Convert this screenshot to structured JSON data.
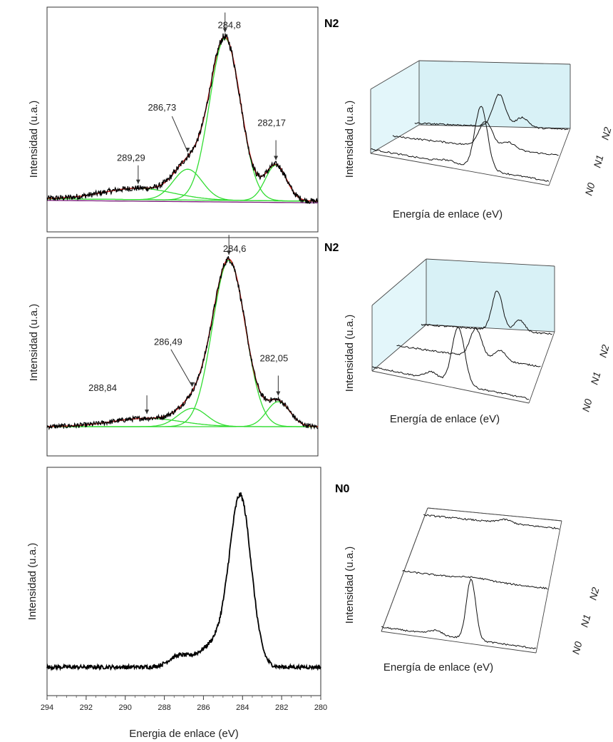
{
  "chart_data": [
    {
      "type": "line",
      "panel_tag": "N2",
      "ylabel": "Intensidad (u.a.)",
      "xlim": [
        294,
        280
      ],
      "components": [
        {
          "center": 284.8,
          "height": 1.0,
          "width": 0.8
        },
        {
          "center": 286.73,
          "height": 0.19,
          "width": 0.75
        },
        {
          "center": 282.17,
          "height": 0.22,
          "width": 0.55
        },
        {
          "center": 289.29,
          "height": 0.07,
          "width": 1.8
        }
      ],
      "annotations": [
        {
          "label": "284,8",
          "x": 284.8
        },
        {
          "label": "286,73",
          "x": 286.73
        },
        {
          "label": "282,17",
          "x": 282.17
        },
        {
          "label": "289,29",
          "x": 289.29
        }
      ],
      "colors": {
        "raw": "#000000",
        "fit": "#cc2222",
        "component": "#33dd33",
        "background": "#7a1a7a"
      },
      "inset": {
        "type": "line",
        "ylabel": "Intensidad (u.a.)",
        "xlabel": "Energía de enlace (eV)",
        "series": [
          "N0",
          "N1",
          "N2"
        ]
      }
    },
    {
      "type": "line",
      "panel_tag": "N2",
      "ylabel": "Intensidad (u.a.)",
      "xlim": [
        294,
        280
      ],
      "components": [
        {
          "center": 284.6,
          "height": 1.0,
          "width": 0.85
        },
        {
          "center": 286.49,
          "height": 0.11,
          "width": 0.75
        },
        {
          "center": 282.05,
          "height": 0.15,
          "width": 0.6
        },
        {
          "center": 288.84,
          "height": 0.05,
          "width": 1.8
        }
      ],
      "annotations": [
        {
          "label": "284,6",
          "x": 284.6
        },
        {
          "label": "286,49",
          "x": 286.49
        },
        {
          "label": "282,05",
          "x": 282.05
        },
        {
          "label": "288,84",
          "x": 288.84
        }
      ],
      "colors": {
        "raw": "#000000",
        "fit": "#cc2222",
        "component": "#33dd33"
      },
      "inset": {
        "type": "line",
        "ylabel": "Intensidad (u.a.)",
        "xlabel": "Energía de enlace (eV)",
        "series": [
          "N0",
          "N1",
          "N2"
        ]
      }
    },
    {
      "type": "line",
      "panel_tag": "N0",
      "ylabel": "Intensidad (u.a.)",
      "xlabel": "Energia de enlace (eV)",
      "xlim": [
        294,
        280
      ],
      "xticks": [
        294,
        292,
        290,
        288,
        286,
        284,
        282,
        280
      ],
      "components": [
        {
          "center": 284.1,
          "height": 1.0,
          "width": 0.55
        },
        {
          "center": 287.3,
          "height": 0.06,
          "width": 0.5
        },
        {
          "center": 285.3,
          "height": 0.15,
          "width": 0.9
        }
      ],
      "colors": {
        "raw": "#000000"
      },
      "inset": {
        "type": "line",
        "ylabel": "Intensidad (u.a.)",
        "xlabel": "Energía de enlace (eV)",
        "series": [
          "N0",
          "N1",
          "N2"
        ]
      }
    }
  ]
}
